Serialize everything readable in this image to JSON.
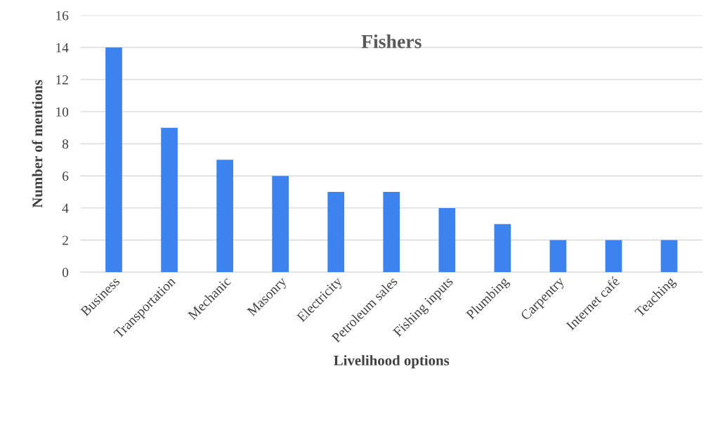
{
  "chart_data": {
    "type": "bar",
    "title": "Fishers",
    "xlabel": "Livelihood options",
    "ylabel": "Number of mentions",
    "categories": [
      "Business",
      "Transportation",
      "Mechanic",
      "Masonry",
      "Electricity",
      "Petroleum sales",
      "Fishing inputs",
      "Plumbing",
      "Carpentry",
      "Internet café",
      "Teaching"
    ],
    "values": [
      14,
      9,
      7,
      6,
      5,
      5,
      4,
      3,
      2,
      2,
      2
    ],
    "color": "#3d83f0",
    "ylim": [
      0,
      16
    ],
    "yticks": [
      0,
      2,
      4,
      6,
      8,
      10,
      12,
      14,
      16
    ],
    "grid": "y"
  }
}
